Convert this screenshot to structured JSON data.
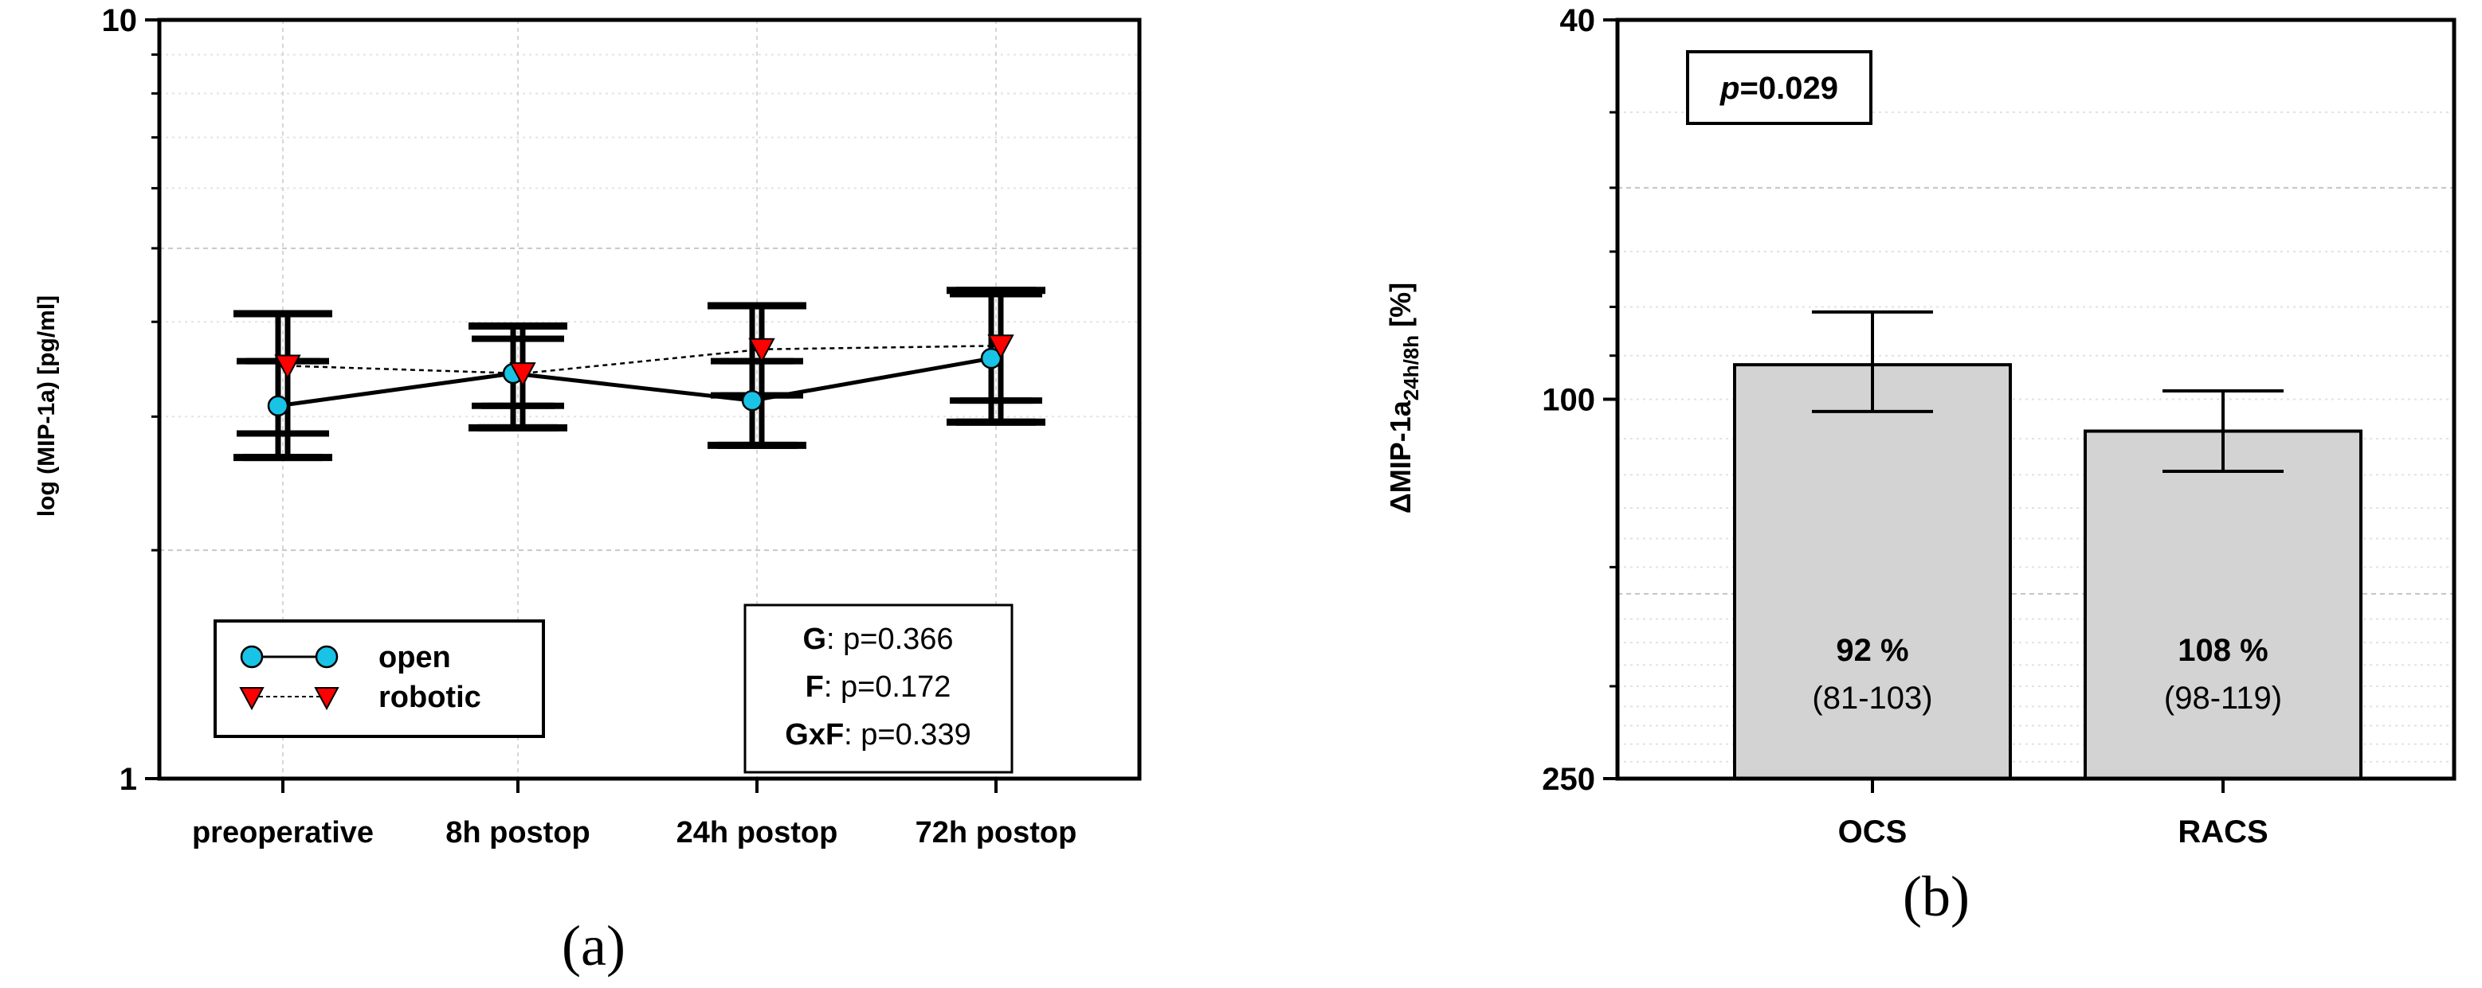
{
  "chart_data": [
    {
      "panel": "(a)",
      "type": "line",
      "ylabel": "log (MIP-1a) [pg/ml]",
      "yscale": "log",
      "ylim": [
        1,
        10
      ],
      "yticks": [
        "1",
        "10"
      ],
      "categories": [
        "preoperative",
        "8h postop",
        "24h postop",
        "72h postop"
      ],
      "series": [
        {
          "name": "open",
          "color": "#19c3e6",
          "marker": "circle",
          "line": "solid",
          "values": [
            3.1,
            3.42,
            3.15,
            3.58
          ],
          "ci_inner": [
            [
              2.85,
              3.55
            ],
            [
              3.1,
              3.8
            ],
            [
              3.2,
              3.55
            ],
            [
              3.15,
              4.35
            ]
          ],
          "ci_outer": [
            [
              2.65,
              4.1
            ],
            [
              2.9,
              3.95
            ],
            [
              2.75,
              4.2
            ],
            [
              2.95,
              4.4
            ]
          ]
        },
        {
          "name": "robotic",
          "color": "#ff0000",
          "marker": "triangle-down",
          "line": "dashed",
          "values": [
            3.5,
            3.42,
            3.68,
            3.72
          ],
          "ci_inner": [
            [
              2.85,
              3.55
            ],
            [
              3.1,
              3.8
            ],
            [
              3.2,
              3.55
            ],
            [
              3.15,
              4.35
            ]
          ],
          "ci_outer": [
            [
              2.65,
              4.1
            ],
            [
              2.9,
              3.95
            ],
            [
              2.75,
              4.2
            ],
            [
              2.95,
              4.4
            ]
          ]
        }
      ],
      "legend": {
        "position": "bottom-left",
        "items": [
          "open",
          "robotic"
        ]
      },
      "stats": [
        {
          "label": "G",
          "text": ": p=0.366"
        },
        {
          "label": "F",
          "text": ": p=0.172"
        },
        {
          "label": "GxF",
          "text": ": p=0.339"
        }
      ],
      "grid": true
    },
    {
      "panel": "(b)",
      "type": "bar",
      "ylabel": "ΔMIP-1a",
      "ylabel_sub": "24h/8h",
      "ylabel_unit": " [%]",
      "yscale": "log-reversed",
      "ylim": [
        40,
        250
      ],
      "yticks": [
        "40",
        "100",
        "250"
      ],
      "ytick_values": [
        40,
        100,
        250
      ],
      "categories": [
        "OCS",
        "RACS"
      ],
      "values": [
        92,
        108
      ],
      "ci": [
        [
          81,
          103
        ],
        [
          98,
          119
        ]
      ],
      "value_labels": [
        "92 %",
        "108 %"
      ],
      "ci_labels": [
        "(81-103)",
        "(98-119)"
      ],
      "bar_color": "#d3d3d3",
      "annotation": {
        "italic": "p",
        "text": "=0.029"
      },
      "grid": true
    }
  ]
}
